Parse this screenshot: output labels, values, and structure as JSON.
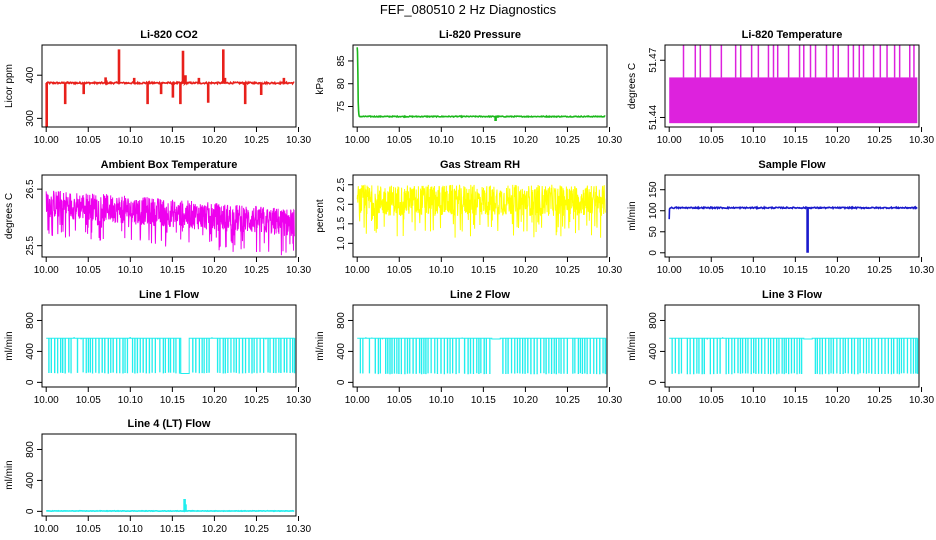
{
  "page": {
    "title": "FEF_080510  2 Hz Diagnostics"
  },
  "chart_data": [
    {
      "id": "li820-co2",
      "type": "line",
      "title": "Li-820 CO2",
      "ylabel": "Licor ppm",
      "color": "#e8201b",
      "xlim": [
        9.995,
        10.297
      ],
      "ylim": [
        280,
        470
      ],
      "yticks": [
        300,
        400
      ],
      "xticks": [
        10.0,
        10.05,
        10.1,
        10.15,
        10.2,
        10.25,
        10.3
      ],
      "series": [
        {
          "name": "CO2",
          "baseline": 382,
          "noise": 2,
          "x_start": 10.0,
          "x_end": 10.295,
          "events": [
            {
              "x": 10.0,
              "y": 282
            },
            {
              "x": 10.022,
              "y": 335
            },
            {
              "x": 10.044,
              "y": 358
            },
            {
              "x": 10.07,
              "y": 393
            },
            {
              "x": 10.086,
              "y": 458
            },
            {
              "x": 10.104,
              "y": 392
            },
            {
              "x": 10.12,
              "y": 335
            },
            {
              "x": 10.136,
              "y": 358
            },
            {
              "x": 10.15,
              "y": 350
            },
            {
              "x": 10.159,
              "y": 335
            },
            {
              "x": 10.162,
              "y": 455
            },
            {
              "x": 10.165,
              "y": 398
            },
            {
              "x": 10.181,
              "y": 392
            },
            {
              "x": 10.192,
              "y": 338
            },
            {
              "x": 10.21,
              "y": 458
            },
            {
              "x": 10.212,
              "y": 392
            },
            {
              "x": 10.236,
              "y": 335
            },
            {
              "x": 10.255,
              "y": 356
            },
            {
              "x": 10.282,
              "y": 392
            }
          ]
        }
      ]
    },
    {
      "id": "li820-pressure",
      "type": "line",
      "title": "Li-820 Pressure",
      "ylabel": "kPa",
      "color": "#1bb81b",
      "xlim": [
        9.995,
        10.297
      ],
      "ylim": [
        70.5,
        88.5
      ],
      "yticks": [
        75,
        80,
        85
      ],
      "xticks": [
        10.0,
        10.05,
        10.1,
        10.15,
        10.2,
        10.25,
        10.3
      ],
      "series": [
        {
          "name": "Pressure",
          "baseline": 72.8,
          "noise": 0.1,
          "x_start": 10.0,
          "x_end": 10.295,
          "start_values": [
            88,
            87,
            82,
            76,
            74,
            73.2
          ],
          "events": [
            {
              "x": 10.164,
              "y": 72.0
            }
          ]
        }
      ]
    },
    {
      "id": "li820-temperature",
      "type": "band",
      "title": "Li-820 Temperature",
      "ylabel": "degrees C",
      "color": "#dd22dd",
      "xlim": [
        9.995,
        10.297
      ],
      "ylim": [
        51.435,
        51.478
      ],
      "yticks": [
        51.44,
        51.47
      ],
      "ytick_labels": [
        "51.44",
        "51.47"
      ],
      "xticks": [
        10.0,
        10.05,
        10.1,
        10.15,
        10.2,
        10.25,
        10.3
      ],
      "series": [
        {
          "name": "Temperature",
          "low": 51.437,
          "high": 51.461,
          "spike_high": 51.478,
          "x_start": 10.0,
          "x_end": 10.295,
          "spikes": [
            10.017,
            10.031,
            10.037,
            10.049,
            10.062,
            10.079,
            10.085,
            10.098,
            10.106,
            10.118,
            10.124,
            10.129,
            10.142,
            10.155,
            10.16,
            10.168,
            10.174,
            10.187,
            10.195,
            10.201,
            10.213,
            10.219,
            10.226,
            10.231,
            10.243,
            10.251,
            10.259,
            10.268,
            10.274,
            10.286,
            10.291
          ]
        }
      ]
    },
    {
      "id": "ambient-box-temperature",
      "type": "noise",
      "title": "Ambient Box Temperature",
      "ylabel": "degrees C",
      "color": "#ee00ee",
      "xlim": [
        9.995,
        10.297
      ],
      "ylim": [
        25.3,
        26.75
      ],
      "yticks": [
        25.5,
        26.5
      ],
      "xticks": [
        10.0,
        10.05,
        10.1,
        10.15,
        10.2,
        10.25,
        10.3
      ],
      "series": [
        {
          "name": "Ambient",
          "x_start": 10.0,
          "x_end": 10.295,
          "start_center": 26.25,
          "end_center": 25.9,
          "amplitude": 0.25,
          "outlier_low": 25.32
        }
      ]
    },
    {
      "id": "gas-stream-rh",
      "type": "noise",
      "title": "Gas Stream RH",
      "ylabel": "percent",
      "color": "#ffff00",
      "xlim": [
        9.995,
        10.297
      ],
      "ylim": [
        0.65,
        2.75
      ],
      "yticks": [
        1.0,
        1.5,
        2.0,
        2.5
      ],
      "ytick_labels": [
        "1.0",
        "1.5",
        "2.0",
        "2.5"
      ],
      "xticks": [
        10.0,
        10.05,
        10.1,
        10.15,
        10.2,
        10.25,
        10.3
      ],
      "series": [
        {
          "name": "RH",
          "x_start": 10.0,
          "x_end": 10.295,
          "start_center": 2.1,
          "end_center": 2.1,
          "amplitude": 0.4,
          "outlier_low": 0.75
        }
      ]
    },
    {
      "id": "sample-flow",
      "type": "line",
      "title": "Sample Flow",
      "ylabel": "ml/min",
      "color": "#1a1acc",
      "xlim": [
        9.995,
        10.297
      ],
      "ylim": [
        -10,
        185
      ],
      "yticks": [
        0,
        50,
        100,
        150
      ],
      "xticks": [
        10.0,
        10.05,
        10.1,
        10.15,
        10.2,
        10.25,
        10.3
      ],
      "series": [
        {
          "name": "Sample",
          "baseline": 107,
          "noise": 1.5,
          "x_start": 10.0,
          "x_end": 10.295,
          "start_values": [
            80,
            104
          ],
          "events": [
            {
              "x": 10.164,
              "y": 2
            }
          ]
        }
      ]
    },
    {
      "id": "line-1-flow",
      "type": "pulse",
      "title": "Line 1 Flow",
      "ylabel": "ml/min",
      "color": "#22eeee",
      "xlim": [
        9.995,
        10.297
      ],
      "ylim": [
        -60,
        1000
      ],
      "yticks": [
        0,
        400,
        800
      ],
      "xticks": [
        10.0,
        10.05,
        10.1,
        10.15,
        10.2,
        10.25,
        10.3
      ],
      "series": [
        {
          "name": "Line1",
          "high": 570,
          "low": 120,
          "x_start": 10.0,
          "x_end": 10.295,
          "period": 0.0033,
          "gap_start": 10.16,
          "gap_end": 10.17,
          "gap_value": 115
        }
      ]
    },
    {
      "id": "line-2-flow",
      "type": "pulse",
      "title": "Line 2 Flow",
      "ylabel": "ml/min",
      "color": "#22eeee",
      "xlim": [
        9.995,
        10.297
      ],
      "ylim": [
        -60,
        1000
      ],
      "yticks": [
        0,
        400,
        800
      ],
      "xticks": [
        10.0,
        10.05,
        10.1,
        10.15,
        10.2,
        10.25,
        10.3
      ],
      "series": [
        {
          "name": "Line2",
          "high": 570,
          "low": 110,
          "x_start": 10.0,
          "x_end": 10.295,
          "period": 0.0033,
          "gap_start": 10.16,
          "gap_end": 10.17,
          "gap_value": 560
        }
      ]
    },
    {
      "id": "line-3-flow",
      "type": "pulse",
      "title": "Line 3 Flow",
      "ylabel": "ml/min",
      "color": "#22eeee",
      "xlim": [
        9.995,
        10.297
      ],
      "ylim": [
        -60,
        1000
      ],
      "yticks": [
        0,
        400,
        800
      ],
      "xticks": [
        10.0,
        10.05,
        10.1,
        10.15,
        10.2,
        10.25,
        10.3
      ],
      "series": [
        {
          "name": "Line3",
          "high": 570,
          "low": 110,
          "x_start": 10.0,
          "x_end": 10.295,
          "period": 0.0033,
          "gap_start": 10.16,
          "gap_end": 10.17,
          "gap_value": 560
        }
      ]
    },
    {
      "id": "line-4-lt-flow",
      "type": "line",
      "title": "Line 4 (LT) Flow",
      "ylabel": "ml/min",
      "color": "#22eeee",
      "xlim": [
        9.995,
        10.297
      ],
      "ylim": [
        -60,
        1000
      ],
      "yticks": [
        0,
        400,
        800
      ],
      "xticks": [
        10.0,
        10.05,
        10.1,
        10.15,
        10.2,
        10.25,
        10.3
      ],
      "series": [
        {
          "name": "Line4",
          "baseline": 5,
          "noise": 3,
          "x_start": 10.0,
          "x_end": 10.295,
          "events": [
            {
              "x": 10.164,
              "y": 150
            },
            {
              "x": 10.165,
              "y": 80
            }
          ]
        }
      ]
    }
  ]
}
